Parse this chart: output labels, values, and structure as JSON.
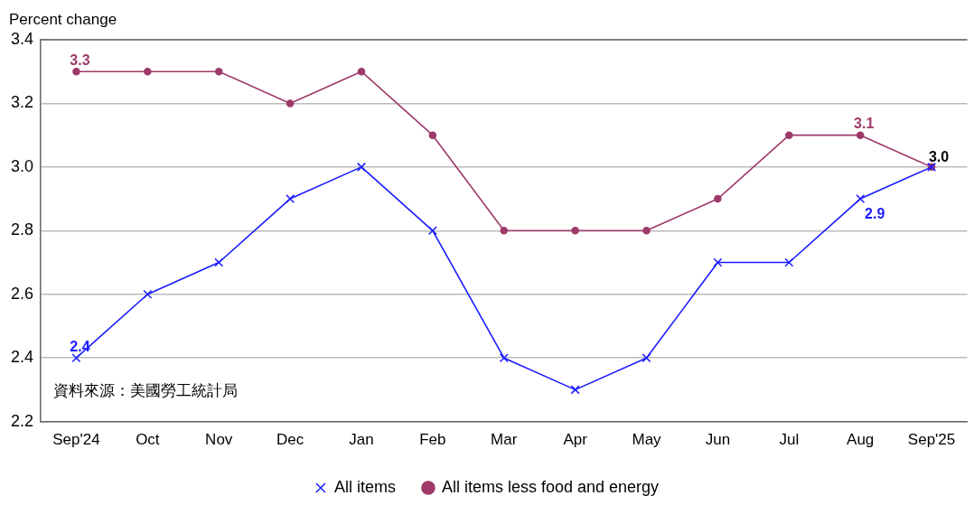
{
  "chart_data": {
    "type": "line",
    "ylabel": "Percent change",
    "categories": [
      "Sep'24",
      "Oct",
      "Nov",
      "Dec",
      "Jan",
      "Feb",
      "Mar",
      "Apr",
      "May",
      "Jun",
      "Jul",
      "Aug",
      "Sep'25"
    ],
    "series": [
      {
        "name": "All items",
        "color": "#1a1aff",
        "marker": "cross",
        "values": [
          2.4,
          2.6,
          2.7,
          2.9,
          3.0,
          2.8,
          2.4,
          2.3,
          2.4,
          2.7,
          2.7,
          2.9,
          3.0
        ],
        "value_labels": [
          "2.4",
          null,
          null,
          null,
          null,
          null,
          null,
          null,
          null,
          null,
          null,
          "2.9",
          null
        ]
      },
      {
        "name": "All items less food and energy",
        "color": "#9e3a6a",
        "marker": "circle",
        "values": [
          3.3,
          3.3,
          3.3,
          3.2,
          3.3,
          3.1,
          2.8,
          2.8,
          2.8,
          2.9,
          3.1,
          3.1,
          3.0
        ],
        "value_labels": [
          "3.3",
          null,
          null,
          null,
          null,
          null,
          null,
          null,
          null,
          null,
          null,
          "3.1",
          null
        ]
      }
    ],
    "annotations": [
      {
        "text": "3.0",
        "x": "Sep'25",
        "y": 3.0
      },
      "資料來源：美國勞工統計局"
    ],
    "ylim": [
      2.2,
      3.4
    ],
    "yticks": [
      "2.2",
      "2.4",
      "2.6",
      "2.8",
      "3.0",
      "3.2",
      "3.4"
    ],
    "grid": "y",
    "legend": "bottom",
    "line_style": "solid"
  }
}
